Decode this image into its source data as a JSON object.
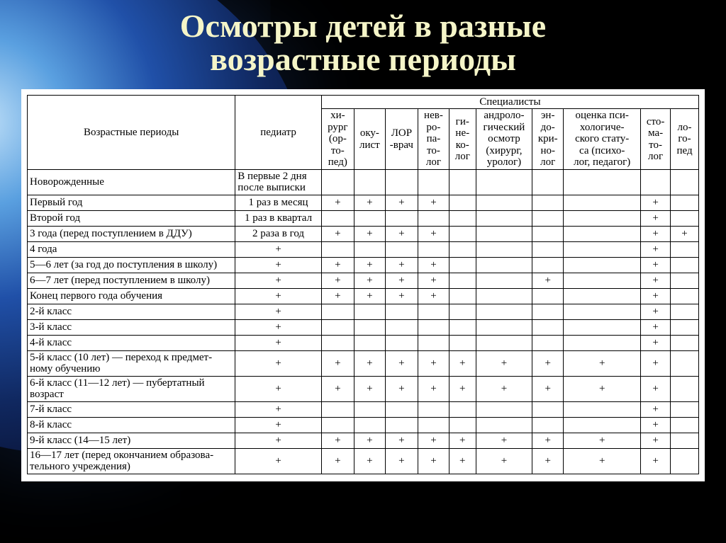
{
  "title_l1": "Осмотры детей в разные",
  "title_l2": "возрастные периоды",
  "colgroup_label": "Специалисты",
  "col_periods": "Возрастные периоды",
  "cols": {
    "pediatr": "педиатр",
    "surgeon": "хи-\nрург\n(ор-\nто-\nпед)",
    "oculist": "оку-\nлист",
    "lor": "ЛОР\n-врач",
    "neuro": "нев-\nро-\nпа-\nто-\nлог",
    "gyneco": "ги-\nне-\nко-\nлог",
    "andro": "андроло-\nгический\nосмотр\n(хирург,\nуролог)",
    "endo": "эн-\nдо-\nкри-\nно-\nлог",
    "psych": "оценка пси-\nхологиче-\nского стату-\nса (психо-\nлог, педагог)",
    "stoma": "сто-\nма-\nто-\nлог",
    "logoped": "ло-\nго-\nпед"
  },
  "rows": [
    {
      "label": "Новорожденные",
      "ped": "В первые 2 дня после выписки",
      "v": [
        "",
        "",
        "",
        "",
        "",
        "",
        "",
        "",
        "",
        ""
      ]
    },
    {
      "label": "Первый год",
      "ped": "1 раз в месяц",
      "v": [
        "+",
        "+",
        "+",
        "+",
        "",
        "",
        "",
        "",
        "+",
        ""
      ]
    },
    {
      "label": "Второй год",
      "ped": "1 раз в квартал",
      "v": [
        "",
        "",
        "",
        "",
        "",
        "",
        "",
        "",
        "+",
        ""
      ]
    },
    {
      "label": "3 года (перед поступлением в ДДУ)",
      "ped": "2 раза в год",
      "v": [
        "+",
        "+",
        "+",
        "+",
        "",
        "",
        "",
        "",
        "+",
        "+"
      ]
    },
    {
      "label": "4 года",
      "ped": "+",
      "v": [
        "",
        "",
        "",
        "",
        "",
        "",
        "",
        "",
        "+",
        ""
      ]
    },
    {
      "label": "5—6 лет (за год до поступления в школу)",
      "ped": "+",
      "v": [
        "+",
        "+",
        "+",
        "+",
        "",
        "",
        "",
        "",
        "+",
        ""
      ]
    },
    {
      "label": "6—7 лет (перед поступлением в школу)",
      "ped": "+",
      "v": [
        "+",
        "+",
        "+",
        "+",
        "",
        "",
        "+",
        "",
        "+",
        ""
      ]
    },
    {
      "label": "Конец первого года обучения",
      "ped": "+",
      "v": [
        "+",
        "+",
        "+",
        "+",
        "",
        "",
        "",
        "",
        "+",
        ""
      ]
    },
    {
      "label": "2-й класс",
      "ped": "+",
      "v": [
        "",
        "",
        "",
        "",
        "",
        "",
        "",
        "",
        "+",
        ""
      ]
    },
    {
      "label": "3-й класс",
      "ped": "+",
      "v": [
        "",
        "",
        "",
        "",
        "",
        "",
        "",
        "",
        "+",
        ""
      ]
    },
    {
      "label": "4-й класс",
      "ped": "+",
      "v": [
        "",
        "",
        "",
        "",
        "",
        "",
        "",
        "",
        "+",
        ""
      ]
    },
    {
      "label": "5-й класс (10 лет) — переход к предмет-\nному обучению",
      "ped": "+",
      "v": [
        "+",
        "+",
        "+",
        "+",
        "+",
        "+",
        "+",
        "+",
        "+",
        ""
      ]
    },
    {
      "label": "6-й класс (11—12 лет) — пубертатный\nвозраст",
      "ped": "+",
      "v": [
        "+",
        "+",
        "+",
        "+",
        "+",
        "+",
        "+",
        "+",
        "+",
        ""
      ]
    },
    {
      "label": "7-й класс",
      "ped": "+",
      "v": [
        "",
        "",
        "",
        "",
        "",
        "",
        "",
        "",
        "+",
        ""
      ]
    },
    {
      "label": "8-й класс",
      "ped": "+",
      "v": [
        "",
        "",
        "",
        "",
        "",
        "",
        "",
        "",
        "+",
        ""
      ]
    },
    {
      "label": "9-й класс (14—15 лет)",
      "ped": "+",
      "v": [
        "+",
        "+",
        "+",
        "+",
        "+",
        "+",
        "+",
        "+",
        "+",
        ""
      ]
    },
    {
      "label": "16—17 лет (перед окончанием образова-\nтельного учреждения)",
      "ped": "+",
      "v": [
        "+",
        "+",
        "+",
        "+",
        "+",
        "+",
        "+",
        "+",
        "+",
        ""
      ]
    }
  ]
}
